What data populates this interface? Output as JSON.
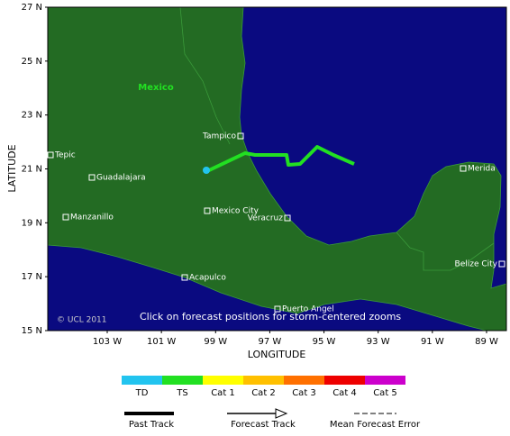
{
  "map": {
    "region_label": "Mexico",
    "cities": [
      "Tampico",
      "Tepic",
      "Guadalajara",
      "Manzanillo",
      "Mexico City",
      "Veracruz",
      "Merida",
      "Belize City",
      "Acapulco",
      "Puerto Angel"
    ],
    "copyright": "© UCL 2011",
    "instruction": "Click on forecast positions for storm-centered zooms"
  },
  "axes": {
    "y_label": "LATITUDE",
    "x_label": "LONGITUDE",
    "y_ticks": [
      "27 N",
      "25 N",
      "23 N",
      "21 N",
      "19 N",
      "17 N",
      "15 N"
    ],
    "x_ticks": [
      "103 W",
      "101 W",
      "99 W",
      "97 W",
      "95 W",
      "93 W",
      "91 W",
      "89 W"
    ]
  },
  "legend": {
    "categories": [
      "TD",
      "TS",
      "Cat 1",
      "Cat 2",
      "Cat 3",
      "Cat 4",
      "Cat 5"
    ],
    "colors": [
      "#22c4ef",
      "#22e022",
      "#ffff00",
      "#ffc000",
      "#ff7000",
      "#ee0000",
      "#cc00cc"
    ],
    "tracks": [
      "Past Track",
      "Forecast Track",
      "Mean Forecast Error"
    ]
  }
}
